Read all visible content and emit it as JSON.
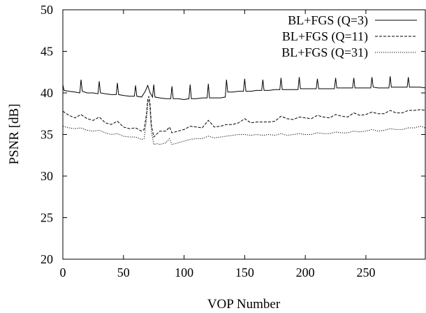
{
  "chart_data": {
    "type": "line",
    "title": "",
    "xlabel": "VOP Number",
    "ylabel": "PSNR [dB]",
    "xlim": [
      0,
      299
    ],
    "ylim": [
      20,
      50
    ],
    "x_ticks": [
      0,
      50,
      100,
      150,
      200,
      250
    ],
    "y_ticks": [
      20,
      25,
      30,
      35,
      40,
      45,
      50
    ],
    "grid": false,
    "legend_position": "top-right",
    "series": [
      {
        "name": "BL+FGS (Q=3)",
        "line_style": "solid",
        "color": "#000000",
        "points": [
          [
            0,
            41.0
          ],
          [
            1,
            40.3
          ],
          [
            5,
            40.2
          ],
          [
            10,
            40.1
          ],
          [
            14,
            40.0
          ],
          [
            15,
            41.6
          ],
          [
            16,
            40.2
          ],
          [
            20,
            40.0
          ],
          [
            25,
            40.0
          ],
          [
            29,
            39.9
          ],
          [
            30,
            41.4
          ],
          [
            31,
            40.0
          ],
          [
            35,
            39.9
          ],
          [
            40,
            39.8
          ],
          [
            44,
            39.8
          ],
          [
            45,
            41.2
          ],
          [
            46,
            39.8
          ],
          [
            50,
            39.7
          ],
          [
            55,
            39.6
          ],
          [
            59,
            39.6
          ],
          [
            60,
            40.9
          ],
          [
            61,
            39.6
          ],
          [
            65,
            39.5
          ],
          [
            68,
            40.2
          ],
          [
            70,
            40.9
          ],
          [
            72,
            40.0
          ],
          [
            74,
            39.5
          ],
          [
            75,
            41.0
          ],
          [
            76,
            39.5
          ],
          [
            80,
            39.4
          ],
          [
            85,
            39.3
          ],
          [
            89,
            39.3
          ],
          [
            90,
            40.8
          ],
          [
            91,
            39.3
          ],
          [
            95,
            39.3
          ],
          [
            100,
            39.2
          ],
          [
            104,
            39.3
          ],
          [
            105,
            41.0
          ],
          [
            106,
            39.3
          ],
          [
            110,
            39.3
          ],
          [
            115,
            39.4
          ],
          [
            119,
            39.4
          ],
          [
            120,
            41.1
          ],
          [
            121,
            39.4
          ],
          [
            125,
            39.4
          ],
          [
            130,
            39.4
          ],
          [
            134,
            39.5
          ],
          [
            135,
            41.6
          ],
          [
            136,
            40.1
          ],
          [
            140,
            40.1
          ],
          [
            145,
            40.2
          ],
          [
            149,
            40.2
          ],
          [
            150,
            41.7
          ],
          [
            151,
            40.2
          ],
          [
            155,
            40.2
          ],
          [
            160,
            40.3
          ],
          [
            164,
            40.3
          ],
          [
            165,
            41.6
          ],
          [
            166,
            40.3
          ],
          [
            170,
            40.3
          ],
          [
            175,
            40.4
          ],
          [
            179,
            40.4
          ],
          [
            180,
            41.8
          ],
          [
            181,
            40.4
          ],
          [
            185,
            40.4
          ],
          [
            190,
            40.4
          ],
          [
            194,
            40.4
          ],
          [
            195,
            41.9
          ],
          [
            196,
            40.5
          ],
          [
            200,
            40.5
          ],
          [
            205,
            40.5
          ],
          [
            209,
            40.5
          ],
          [
            210,
            41.7
          ],
          [
            211,
            40.5
          ],
          [
            215,
            40.5
          ],
          [
            220,
            40.5
          ],
          [
            224,
            40.5
          ],
          [
            225,
            41.8
          ],
          [
            226,
            40.6
          ],
          [
            230,
            40.6
          ],
          [
            235,
            40.6
          ],
          [
            239,
            40.6
          ],
          [
            240,
            41.8
          ],
          [
            241,
            40.6
          ],
          [
            245,
            40.6
          ],
          [
            250,
            40.6
          ],
          [
            254,
            40.6
          ],
          [
            255,
            41.9
          ],
          [
            256,
            40.7
          ],
          [
            260,
            40.6
          ],
          [
            265,
            40.6
          ],
          [
            269,
            40.6
          ],
          [
            270,
            42.0
          ],
          [
            271,
            40.7
          ],
          [
            275,
            40.7
          ],
          [
            280,
            40.7
          ],
          [
            284,
            40.7
          ],
          [
            285,
            41.9
          ],
          [
            286,
            40.7
          ],
          [
            290,
            40.7
          ],
          [
            295,
            40.7
          ],
          [
            299,
            40.6
          ]
        ]
      },
      {
        "name": "BL+FGS (Q=11)",
        "line_style": "dashed",
        "color": "#000000",
        "points": [
          [
            0,
            37.8
          ],
          [
            5,
            37.3
          ],
          [
            10,
            37.0
          ],
          [
            15,
            37.4
          ],
          [
            20,
            36.9
          ],
          [
            25,
            36.7
          ],
          [
            30,
            37.1
          ],
          [
            35,
            36.4
          ],
          [
            40,
            36.2
          ],
          [
            45,
            36.6
          ],
          [
            50,
            35.9
          ],
          [
            55,
            35.7
          ],
          [
            60,
            35.8
          ],
          [
            65,
            35.4
          ],
          [
            67,
            35.6
          ],
          [
            69,
            37.5
          ],
          [
            70,
            39.2
          ],
          [
            71,
            39.6
          ],
          [
            72,
            38.6
          ],
          [
            73,
            36.2
          ],
          [
            75,
            34.7
          ],
          [
            77,
            35.0
          ],
          [
            80,
            35.4
          ],
          [
            85,
            35.4
          ],
          [
            88,
            35.9
          ],
          [
            90,
            35.2
          ],
          [
            95,
            35.4
          ],
          [
            100,
            35.6
          ],
          [
            105,
            36.0
          ],
          [
            110,
            35.9
          ],
          [
            115,
            35.8
          ],
          [
            120,
            36.7
          ],
          [
            125,
            35.9
          ],
          [
            130,
            36.0
          ],
          [
            135,
            36.2
          ],
          [
            140,
            36.2
          ],
          [
            145,
            36.4
          ],
          [
            150,
            36.9
          ],
          [
            155,
            36.4
          ],
          [
            160,
            36.5
          ],
          [
            165,
            36.5
          ],
          [
            170,
            36.5
          ],
          [
            175,
            36.6
          ],
          [
            180,
            37.2
          ],
          [
            185,
            36.9
          ],
          [
            190,
            36.8
          ],
          [
            195,
            37.1
          ],
          [
            200,
            37.0
          ],
          [
            205,
            36.9
          ],
          [
            210,
            37.3
          ],
          [
            215,
            37.1
          ],
          [
            220,
            37.0
          ],
          [
            225,
            37.4
          ],
          [
            230,
            37.2
          ],
          [
            235,
            37.1
          ],
          [
            240,
            37.6
          ],
          [
            245,
            37.3
          ],
          [
            250,
            37.4
          ],
          [
            255,
            37.7
          ],
          [
            260,
            37.5
          ],
          [
            265,
            37.5
          ],
          [
            270,
            37.9
          ],
          [
            275,
            37.6
          ],
          [
            280,
            37.6
          ],
          [
            285,
            37.9
          ],
          [
            290,
            37.9
          ],
          [
            295,
            38.0
          ],
          [
            299,
            37.9
          ]
        ]
      },
      {
        "name": "BL+FGS (Q=31)",
        "line_style": "dotted",
        "color": "#000000",
        "points": [
          [
            0,
            36.0
          ],
          [
            5,
            35.8
          ],
          [
            10,
            35.7
          ],
          [
            15,
            35.8
          ],
          [
            20,
            35.5
          ],
          [
            25,
            35.4
          ],
          [
            30,
            35.5
          ],
          [
            35,
            35.2
          ],
          [
            40,
            35.0
          ],
          [
            45,
            35.1
          ],
          [
            50,
            34.8
          ],
          [
            55,
            34.7
          ],
          [
            60,
            34.7
          ],
          [
            65,
            34.4
          ],
          [
            67,
            34.5
          ],
          [
            69,
            36.8
          ],
          [
            70,
            38.8
          ],
          [
            71,
            39.2
          ],
          [
            72,
            37.8
          ],
          [
            73,
            35.4
          ],
          [
            75,
            33.8
          ],
          [
            78,
            33.9
          ],
          [
            80,
            33.8
          ],
          [
            85,
            34.0
          ],
          [
            88,
            34.5
          ],
          [
            90,
            33.8
          ],
          [
            95,
            34.0
          ],
          [
            100,
            34.2
          ],
          [
            105,
            34.4
          ],
          [
            110,
            34.5
          ],
          [
            115,
            34.5
          ],
          [
            120,
            34.8
          ],
          [
            125,
            34.6
          ],
          [
            130,
            34.7
          ],
          [
            135,
            34.8
          ],
          [
            140,
            34.9
          ],
          [
            145,
            35.0
          ],
          [
            150,
            35.0
          ],
          [
            155,
            34.9
          ],
          [
            160,
            35.0
          ],
          [
            165,
            34.9
          ],
          [
            170,
            35.0
          ],
          [
            175,
            34.9
          ],
          [
            180,
            35.1
          ],
          [
            185,
            34.9
          ],
          [
            190,
            35.0
          ],
          [
            195,
            35.1
          ],
          [
            200,
            35.0
          ],
          [
            205,
            35.0
          ],
          [
            210,
            35.2
          ],
          [
            215,
            35.1
          ],
          [
            220,
            35.1
          ],
          [
            225,
            35.3
          ],
          [
            230,
            35.2
          ],
          [
            235,
            35.2
          ],
          [
            240,
            35.4
          ],
          [
            245,
            35.3
          ],
          [
            250,
            35.4
          ],
          [
            255,
            35.6
          ],
          [
            260,
            35.4
          ],
          [
            265,
            35.5
          ],
          [
            270,
            35.7
          ],
          [
            275,
            35.6
          ],
          [
            280,
            35.6
          ],
          [
            285,
            35.8
          ],
          [
            290,
            35.8
          ],
          [
            295,
            36.0
          ],
          [
            299,
            35.8
          ]
        ]
      }
    ]
  }
}
